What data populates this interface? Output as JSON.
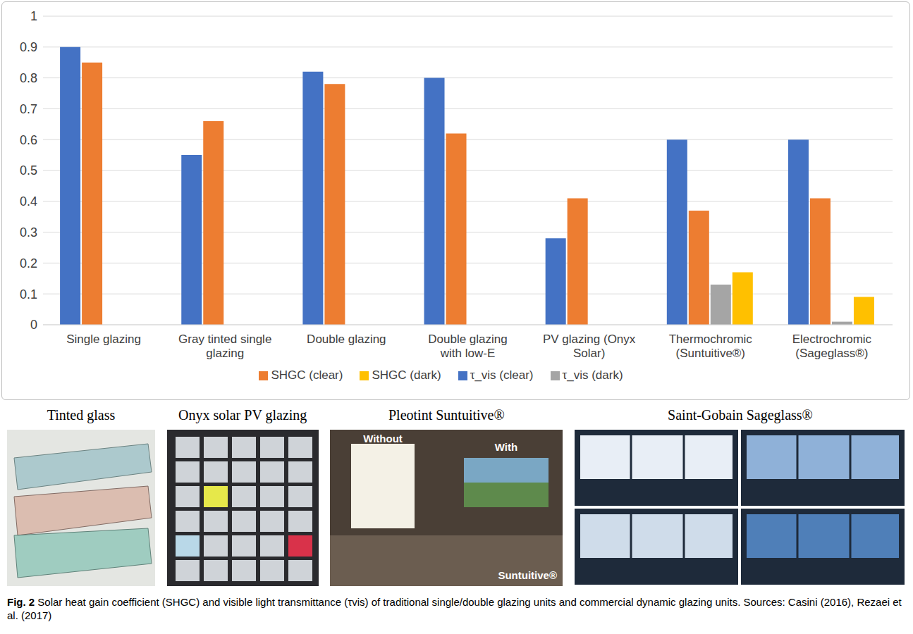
{
  "chart_data": {
    "type": "bar",
    "categories": [
      "Single glazing",
      "Gray tinted single glazing",
      "Double glazing",
      "Double glazing with low-E",
      "PV glazing (Onyx Solar)",
      "Thermochromic (Suntuitive®)",
      "Electrochromic (Sageglass®)"
    ],
    "series": [
      {
        "name": "τ_vis (clear)",
        "color": "#4472c4",
        "values": [
          0.9,
          0.55,
          0.82,
          0.8,
          0.28,
          0.6,
          0.6
        ]
      },
      {
        "name": "SHGC (clear)",
        "color": "#ed7d31",
        "values": [
          0.85,
          0.66,
          0.78,
          0.62,
          0.41,
          0.37,
          0.41
        ]
      },
      {
        "name": "τ_vis (dark)",
        "color": "#a5a5a5",
        "values": [
          null,
          null,
          null,
          null,
          null,
          0.13,
          0.01
        ]
      },
      {
        "name": "SHGC (dark)",
        "color": "#ffc000",
        "values": [
          null,
          null,
          null,
          null,
          null,
          0.17,
          0.09
        ]
      }
    ],
    "ylim": [
      0,
      1
    ],
    "yticks": [
      0,
      0.1,
      0.2,
      0.3,
      0.4,
      0.5,
      0.6,
      0.7,
      0.8,
      0.9,
      1
    ],
    "grid": true,
    "legend": "bottom"
  },
  "figure": {
    "panels": [
      {
        "label": "Tinted glass"
      },
      {
        "label": "Onyx solar PV glazing"
      },
      {
        "label": "Pleotint Suntuitive®",
        "overlay_texts": [
          "Without",
          "With",
          "Suntuitive®"
        ]
      },
      {
        "label": "Saint-Gobain Sageglass®"
      }
    ],
    "caption": {
      "label": "Fig. 2",
      "text": "Solar heat gain coefficient (SHGC) and visible light transmittance (τvis) of traditional single/double glazing units and commercial dynamic glazing units. Sources: Casini (2016), Rezaei et al. (2017)"
    }
  }
}
